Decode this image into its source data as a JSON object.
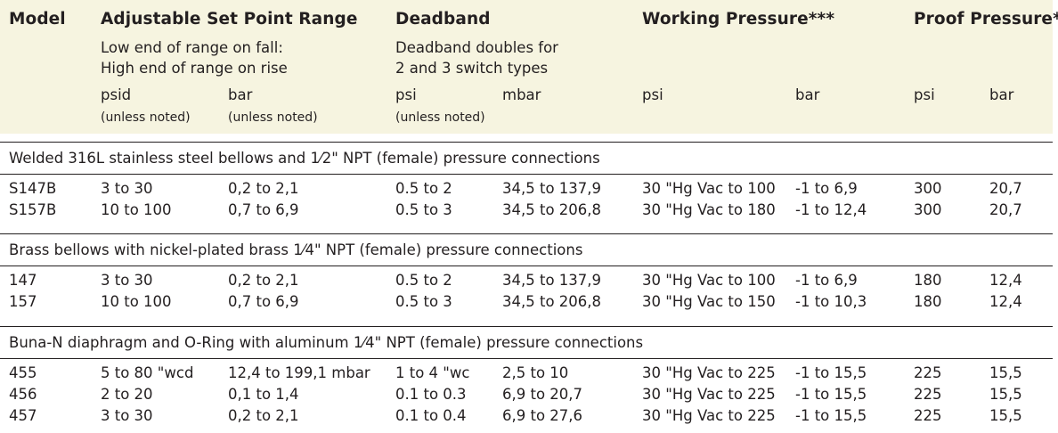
{
  "headers": {
    "model": "Model",
    "setpoint": "Adjustable Set Point Range",
    "setpoint_note1": "Low end of range on fall:",
    "setpoint_note2": "High end of range on rise",
    "deadband": "Deadband",
    "deadband_note1": "Deadband doubles for",
    "deadband_note2": "2 and 3 switch types",
    "working": "Working Pressure***",
    "proof": "Proof Pressure**",
    "units": {
      "sp_psid": "psid",
      "sp_psid_note": "(unless noted)",
      "sp_bar": "bar",
      "sp_bar_note": "(unless noted)",
      "db_psi": "psi",
      "db_psi_note": "(unless noted)",
      "db_mbar": "mbar",
      "wp_psi": "psi",
      "wp_bar": "bar",
      "pp_psi": "psi",
      "pp_bar": "bar"
    }
  },
  "sections": [
    {
      "title": "Welded 316L stainless steel bellows and 1⁄2\" NPT (female) pressure connections",
      "rows": [
        [
          "S147B",
          "3 to 30",
          "0,2 to 2,1",
          "0.5 to 2",
          "34,5 to 137,9",
          "30 \"Hg Vac to 100",
          "-1 to 6,9",
          "300",
          "20,7"
        ],
        [
          "S157B",
          "10 to 100",
          "0,7 to 6,9",
          "0.5 to 3",
          "34,5 to 206,8",
          "30 \"Hg Vac to 180",
          "-1 to 12,4",
          "300",
          "20,7"
        ]
      ]
    },
    {
      "title": "Brass bellows with nickel-plated brass 1⁄4\" NPT (female) pressure connections",
      "rows": [
        [
          "147",
          "3 to 30",
          "0,2 to 2,1",
          "0.5 to 2",
          "34,5 to 137,9",
          "30 \"Hg Vac to 100",
          "-1 to 6,9",
          "180",
          "12,4"
        ],
        [
          "157",
          "10 to 100",
          "0,7 to 6,9",
          "0.5 to 3",
          "34,5 to 206,8",
          "30 \"Hg Vac to 150",
          "-1 to 10,3",
          "180",
          "12,4"
        ]
      ]
    },
    {
      "title": "Buna-N diaphragm and O-Ring with aluminum 1⁄4\" NPT (female) pressure connections",
      "rows": [
        [
          "455",
          "5 to 80 \"wcd",
          "12,4 to 199,1 mbar",
          "1 to 4 \"wc",
          "2,5 to 10",
          "30 \"Hg Vac to 225",
          "-1 to 15,5",
          "225",
          "15,5"
        ],
        [
          "456",
          "2 to 20",
          "0,1 to 1,4",
          "0.1 to 0.3",
          "6,9 to 20,7",
          "30 \"Hg Vac to 225",
          "-1 to 15,5",
          "225",
          "15,5"
        ],
        [
          "457",
          "3 to 30",
          "0,2 to 2,1",
          "0.1 to 0.4",
          "6,9 to 27,6",
          "30 \"Hg Vac to 225",
          "-1 to 15,5",
          "225",
          "15,5"
        ]
      ]
    }
  ]
}
